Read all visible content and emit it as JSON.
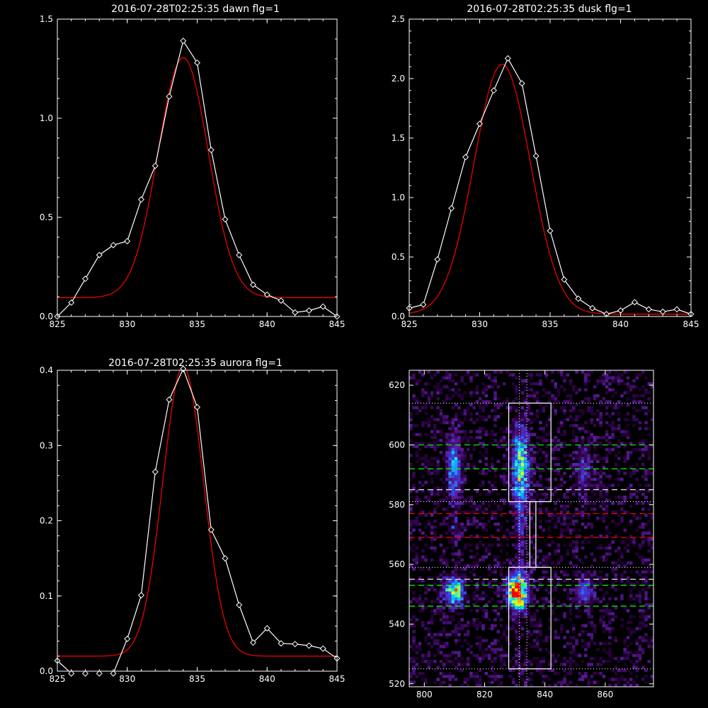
{
  "chart_data": [
    {
      "type": "line",
      "title": "2016-07-28T02:25:35 dawn flg=1",
      "xlim": [
        825,
        845
      ],
      "ylim": [
        0,
        1.5
      ],
      "xticks": [
        825,
        830,
        835,
        840,
        845
      ],
      "yticks": [
        0.0,
        0.5,
        1.0,
        1.5
      ],
      "ytick_labels": [
        "0.0",
        "0.5",
        "1.0",
        "1.5"
      ],
      "series": [
        {
          "role": "data",
          "color": "#ffffff",
          "marker": "diamond",
          "x": [
            825,
            826,
            827,
            828,
            829,
            830,
            831,
            832,
            833,
            834,
            835,
            836,
            837,
            838,
            839,
            840,
            841,
            842,
            843,
            844,
            845
          ],
          "y": [
            0.0,
            0.07,
            0.19,
            0.31,
            0.36,
            0.38,
            0.59,
            0.76,
            1.11,
            1.39,
            1.28,
            0.84,
            0.49,
            0.31,
            0.16,
            0.11,
            0.08,
            0.02,
            0.03,
            0.05,
            0.0
          ]
        },
        {
          "role": "fit",
          "color": "#ff0000",
          "gaussian": {
            "amp": 1.21,
            "center": 834.0,
            "sigma": 1.8,
            "offset": 0.095
          }
        }
      ]
    },
    {
      "type": "line",
      "title": "2016-07-28T02:25:35 dusk flg=1",
      "xlim": [
        825,
        845
      ],
      "ylim": [
        0,
        2.5
      ],
      "xticks": [
        825,
        830,
        835,
        840,
        845
      ],
      "yticks": [
        0.0,
        0.5,
        1.0,
        1.5,
        2.0,
        2.5
      ],
      "ytick_labels": [
        "0.0",
        "0.5",
        "1.0",
        "1.5",
        "2.0",
        "2.5"
      ],
      "series": [
        {
          "role": "data",
          "color": "#ffffff",
          "marker": "diamond",
          "x": [
            825,
            826,
            827,
            828,
            829,
            830,
            831,
            832,
            833,
            834,
            835,
            836,
            837,
            838,
            839,
            840,
            841,
            842,
            843,
            844,
            845
          ],
          "y": [
            0.07,
            0.1,
            0.48,
            0.91,
            1.34,
            1.62,
            1.9,
            2.17,
            1.96,
            1.35,
            0.72,
            0.31,
            0.15,
            0.07,
            0.02,
            0.05,
            0.12,
            0.06,
            0.04,
            0.06,
            0.02
          ]
        },
        {
          "role": "fit",
          "color": "#ff0000",
          "gaussian": {
            "amp": 2.1,
            "center": 831.6,
            "sigma": 2.0,
            "offset": 0.02
          }
        }
      ]
    },
    {
      "type": "line",
      "title": "2016-07-28T02:25:35 aurora flg=1",
      "xlim": [
        825,
        845
      ],
      "ylim": [
        0,
        0.4
      ],
      "xticks": [
        825,
        830,
        835,
        840,
        845
      ],
      "yticks": [
        0.0,
        0.1,
        0.2,
        0.3,
        0.4
      ],
      "ytick_labels": [
        "0.0",
        "0.1",
        "0.2",
        "0.3",
        "0.4"
      ],
      "series": [
        {
          "role": "data",
          "color": "#ffffff",
          "marker": "diamond",
          "x": [
            825,
            826,
            827,
            828,
            829,
            830,
            831,
            832,
            833,
            834,
            835,
            836,
            837,
            838,
            839,
            840,
            841,
            842,
            843,
            844,
            845
          ],
          "y": [
            0.014,
            -0.003,
            -0.003,
            -0.003,
            -0.003,
            0.043,
            0.101,
            0.265,
            0.361,
            0.402,
            0.351,
            0.188,
            0.15,
            0.088,
            0.038,
            0.057,
            0.037,
            0.036,
            0.034,
            0.03,
            0.017
          ]
        },
        {
          "role": "fit",
          "color": "#ff0000",
          "gaussian": {
            "amp": 0.385,
            "center": 834.0,
            "sigma": 1.45,
            "offset": 0.02
          }
        }
      ]
    },
    {
      "type": "heatmap",
      "title": "",
      "xlim": [
        795,
        876
      ],
      "ylim": [
        519,
        625
      ],
      "xticks": [
        800,
        820,
        840,
        860
      ],
      "yticks": [
        520,
        540,
        560,
        580,
        600,
        620
      ],
      "colormap": [
        "#000000",
        "#2a0040",
        "#5a1a9a",
        "#3a3ad8",
        "#1f8cff",
        "#00e6ff",
        "#7bff5a",
        "#ffff00",
        "#ff8000",
        "#ff0000"
      ],
      "blobs": [
        {
          "x": 831,
          "y": 551,
          "sx": 2.2,
          "sy": 4.0,
          "amp": 1.0
        },
        {
          "x": 832,
          "y": 592,
          "sx": 2.0,
          "sy": 9.0,
          "amp": 0.55
        },
        {
          "x": 810,
          "y": 551,
          "sx": 2.2,
          "sy": 3.2,
          "amp": 0.6
        },
        {
          "x": 810,
          "y": 592,
          "sx": 1.6,
          "sy": 7.5,
          "amp": 0.38
        },
        {
          "x": 853,
          "y": 551,
          "sx": 2.0,
          "sy": 3.0,
          "amp": 0.32
        },
        {
          "x": 853,
          "y": 592,
          "sx": 1.8,
          "sy": 6.0,
          "amp": 0.2
        },
        {
          "x": 810,
          "y": 571,
          "sx": 1.0,
          "sy": 3.0,
          "amp": 0.15
        },
        {
          "x": 832,
          "y": 571,
          "sx": 1.0,
          "sy": 8.0,
          "amp": 0.18
        }
      ],
      "noise_level": 0.1,
      "boxes": [
        {
          "x": [
            828,
            842
          ],
          "y": [
            581,
            614
          ]
        },
        {
          "x": [
            828,
            842
          ],
          "y": [
            525,
            559
          ]
        },
        {
          "x": [
            835,
            837
          ],
          "y": [
            559,
            581
          ]
        }
      ],
      "dotted_hlines": [
        614,
        581,
        559,
        525
      ],
      "dotted_vlines": [
        831.5,
        834
      ],
      "dashed_hlines": [
        {
          "y": 600,
          "color": "#00ff00"
        },
        {
          "y": 592,
          "color": "#00ff00"
        },
        {
          "y": 585,
          "color": "#ffffff"
        },
        {
          "y": 577,
          "color": "#ff0000"
        },
        {
          "y": 569,
          "color": "#ff0000"
        },
        {
          "y": 555,
          "color": "#ffffff"
        },
        {
          "y": 553,
          "color": "#00ff00"
        },
        {
          "y": 546,
          "color": "#00ff00"
        }
      ]
    }
  ]
}
